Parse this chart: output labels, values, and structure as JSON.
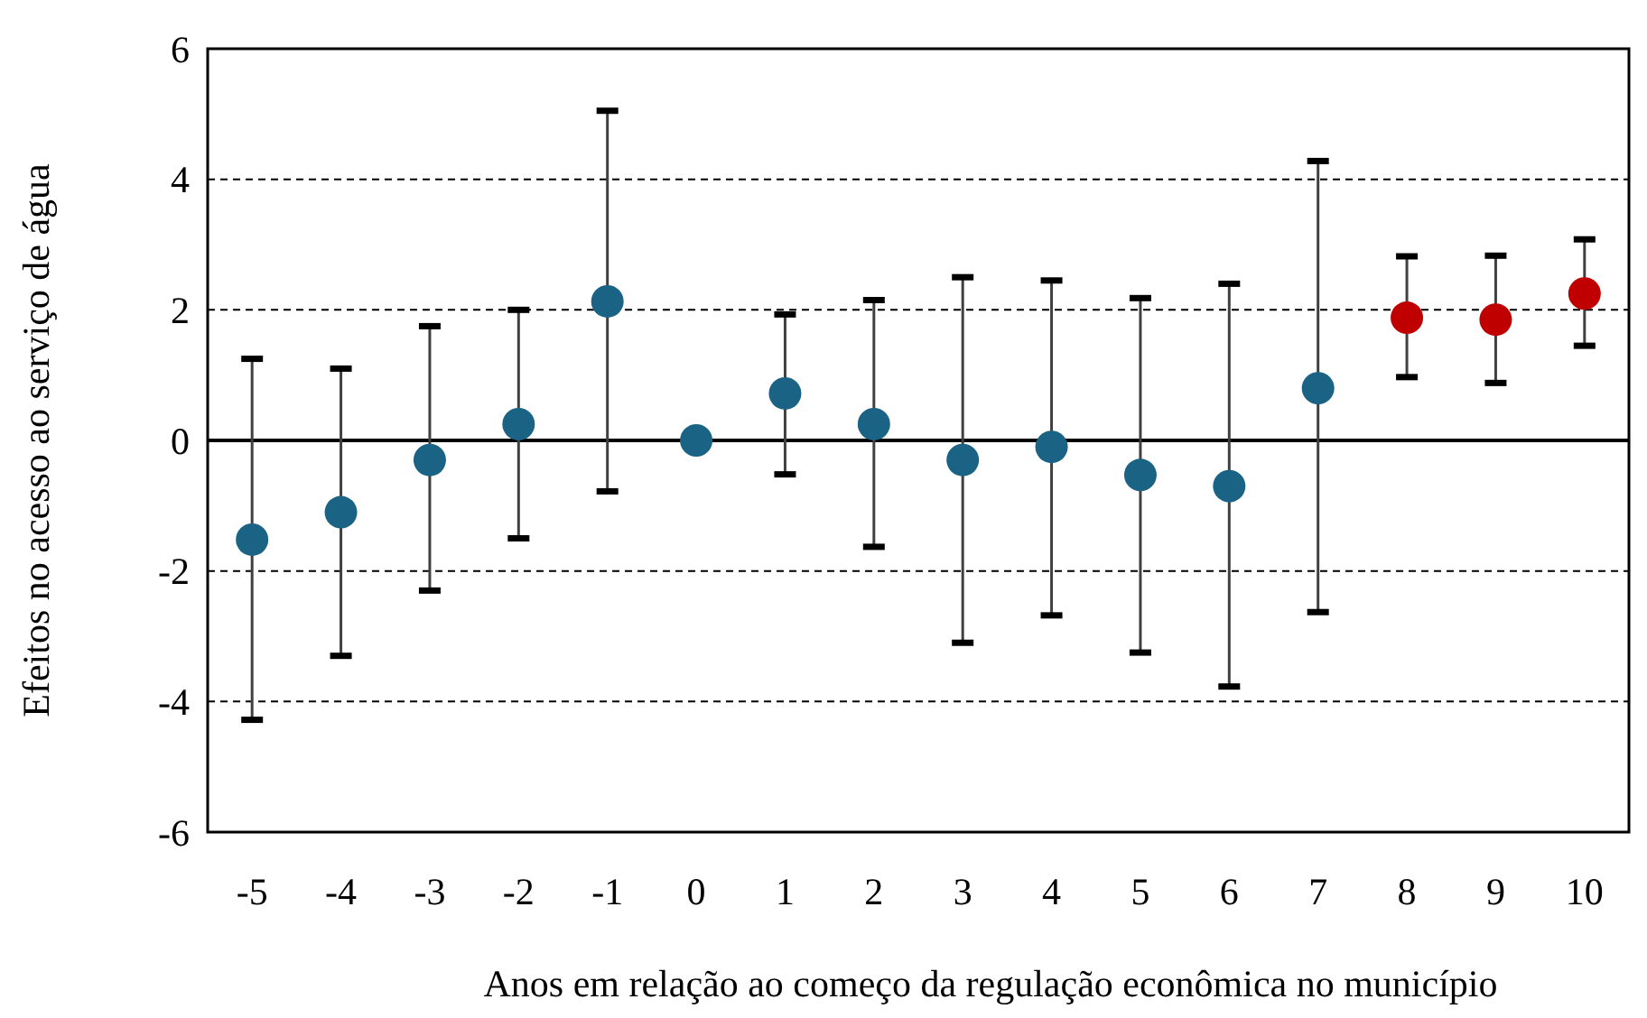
{
  "chart_data": {
    "type": "scatter",
    "xlabel": "Anos em relação ao começo da regulação econômica no município",
    "ylabel": "Efeitos no acesso ao serviço de água",
    "categories": [
      "-5",
      "-4",
      "-3",
      "-2",
      "-1",
      "0",
      "1",
      "2",
      "3",
      "4",
      "5",
      "6",
      "7",
      "8",
      "9",
      "10"
    ],
    "values": [
      -1.52,
      -1.1,
      -0.3,
      0.25,
      2.13,
      0,
      0.72,
      0.25,
      -0.3,
      -0.1,
      -0.53,
      -0.7,
      0.8,
      1.88,
      1.85,
      2.25
    ],
    "errors": [
      [
        -4.28,
        1.25
      ],
      [
        -3.3,
        1.1
      ],
      [
        -2.3,
        1.75
      ],
      [
        -1.5,
        2.0
      ],
      [
        -0.78,
        5.05
      ],
      [
        0,
        0
      ],
      [
        -0.52,
        1.93
      ],
      [
        -1.63,
        2.15
      ],
      [
        -3.1,
        2.5
      ],
      [
        -2.68,
        2.45
      ],
      [
        -3.25,
        2.18
      ],
      [
        -3.77,
        2.4
      ],
      [
        -2.63,
        4.28
      ],
      [
        0.97,
        2.82
      ],
      [
        0.88,
        2.83
      ],
      [
        1.45,
        3.08
      ]
    ],
    "colors": [
      "#1b6385",
      "#1b6385",
      "#1b6385",
      "#1b6385",
      "#1b6385",
      "#1b6385",
      "#1b6385",
      "#1b6385",
      "#1b6385",
      "#1b6385",
      "#1b6385",
      "#1b6385",
      "#1b6385",
      "#c00000",
      "#c00000",
      "#c00000"
    ],
    "ylim": [
      -6,
      6
    ],
    "yticks": [
      -6,
      -4,
      -2,
      0,
      2,
      4,
      6
    ],
    "grid": "y",
    "line_style": "dashed",
    "marker": "circle",
    "ref_lines": [
      {
        "axis": "y",
        "value": 0,
        "color": "#000000",
        "line_style": "solid"
      }
    ]
  }
}
